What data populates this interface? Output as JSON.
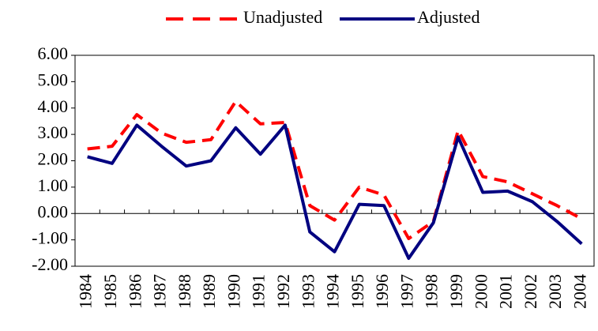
{
  "chart_data": {
    "type": "line",
    "categories": [
      "1984",
      "1985",
      "1986",
      "1987",
      "1988",
      "1989",
      "1990",
      "1991",
      "1992",
      "1993",
      "1994",
      "1995",
      "1996",
      "1997",
      "1998",
      "1999",
      "2000",
      "2001",
      "2002",
      "2003",
      "2004"
    ],
    "series": [
      {
        "name": "Unadjusted",
        "color": "#ff0000",
        "dashed": true,
        "values": [
          2.45,
          2.55,
          3.75,
          3.05,
          2.7,
          2.8,
          4.25,
          3.4,
          3.45,
          0.3,
          -0.25,
          1.0,
          0.7,
          -0.95,
          -0.3,
          3.15,
          1.4,
          1.2,
          0.75,
          0.3,
          -0.2
        ]
      },
      {
        "name": "Adjusted",
        "color": "#000080",
        "dashed": false,
        "values": [
          2.15,
          1.9,
          3.35,
          2.55,
          1.8,
          2.0,
          3.25,
          2.25,
          3.35,
          -0.7,
          -1.45,
          0.35,
          0.3,
          -1.7,
          -0.35,
          2.9,
          0.8,
          0.85,
          0.45,
          -0.3,
          -1.15
        ]
      }
    ],
    "ylim": [
      -2,
      6
    ],
    "yticks": [
      {
        "value": -2,
        "label": "-2.00"
      },
      {
        "value": -1,
        "label": "-1.00"
      },
      {
        "value": 0,
        "label": "0.00"
      },
      {
        "value": 1,
        "label": "1.00"
      },
      {
        "value": 2,
        "label": "2.00"
      },
      {
        "value": 3,
        "label": "3.00"
      },
      {
        "value": 4,
        "label": "4.00"
      },
      {
        "value": 5,
        "label": "5.00"
      },
      {
        "value": 6,
        "label": "6.00"
      }
    ],
    "legend": "top"
  }
}
